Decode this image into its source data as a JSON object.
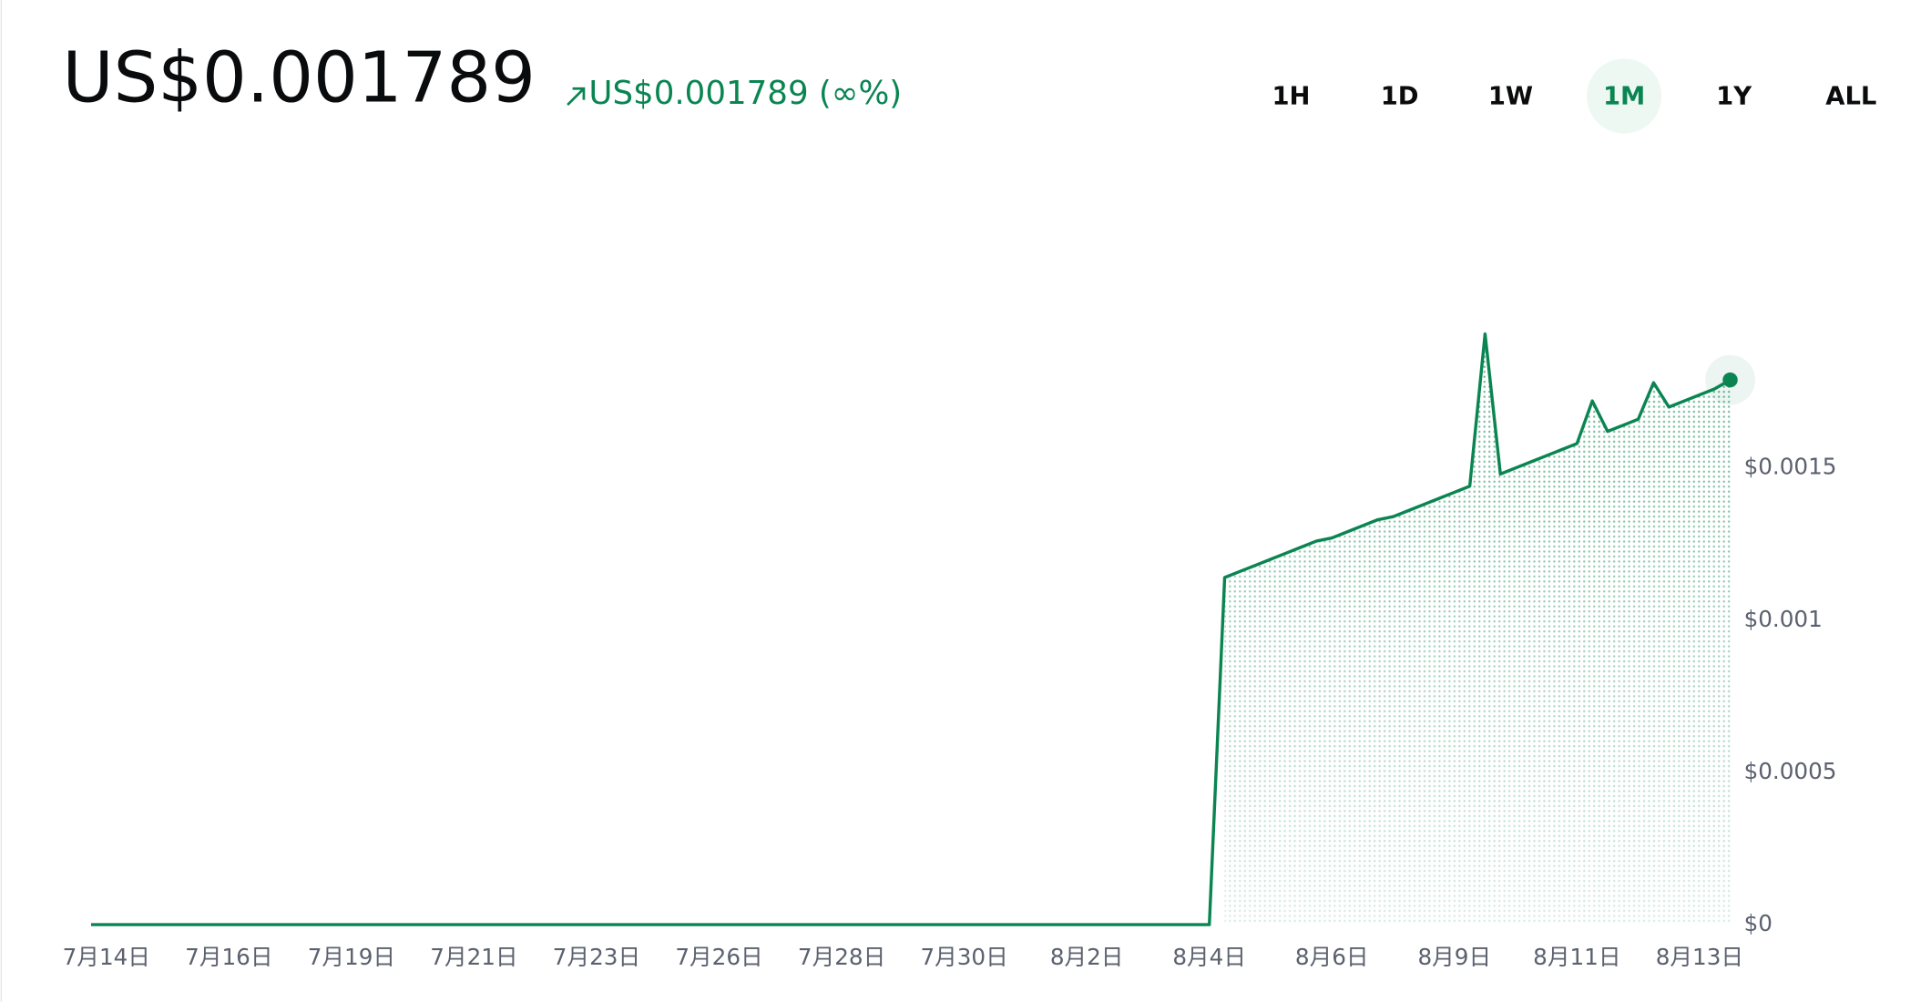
{
  "header": {
    "price": "US$0.001789",
    "change": "US$0.001789 (∞%)"
  },
  "periods": [
    "1H",
    "1D",
    "1W",
    "1M",
    "1Y",
    "ALL"
  ],
  "selected_period": "1M",
  "chart_data": {
    "type": "line",
    "color": "#0a8552",
    "categories": [
      null,
      "7月14日",
      null,
      null,
      null,
      null,
      null,
      null,
      null,
      "7月16日",
      null,
      null,
      null,
      null,
      null,
      null,
      null,
      "7月19日",
      null,
      null,
      null,
      null,
      null,
      null,
      null,
      "7月21日",
      null,
      null,
      null,
      null,
      null,
      null,
      null,
      "7月23日",
      null,
      null,
      null,
      null,
      null,
      null,
      null,
      "7月26日",
      null,
      null,
      null,
      null,
      null,
      null,
      null,
      "7月28日",
      null,
      null,
      null,
      null,
      null,
      null,
      null,
      "7月30日",
      null,
      null,
      null,
      null,
      null,
      null,
      null,
      "8月2日",
      null,
      null,
      null,
      null,
      null,
      null,
      null,
      "8月4日",
      null,
      null,
      null,
      null,
      null,
      null,
      null,
      "8月6日",
      null,
      null,
      null,
      null,
      null,
      null,
      null,
      "8月9日",
      null,
      null,
      null,
      null,
      null,
      null,
      null,
      "8月11日",
      null,
      null,
      null,
      null,
      null,
      null,
      null,
      "8月13日",
      null,
      null
    ],
    "values": [
      0,
      0,
      0,
      0,
      0,
      0,
      0,
      0,
      0,
      0,
      0,
      0,
      0,
      0,
      0,
      0,
      0,
      0,
      0,
      0,
      0,
      0,
      0,
      0,
      0,
      0,
      0,
      0,
      0,
      0,
      0,
      0,
      0,
      0,
      0,
      0,
      0,
      0,
      0,
      0,
      0,
      0,
      0,
      0,
      0,
      0,
      0,
      0,
      0,
      0,
      0,
      0,
      0,
      0,
      0,
      0,
      0,
      0,
      0,
      0,
      0,
      0,
      0,
      0,
      0,
      0,
      0,
      0,
      0,
      0,
      0,
      0,
      0,
      0,
      0.00114,
      0.00116,
      0.00118,
      0.0012,
      0.00122,
      0.00124,
      0.00126,
      0.00127,
      0.00129,
      0.00131,
      0.00133,
      0.00134,
      0.00136,
      0.00138,
      0.0014,
      0.00142,
      0.00144,
      0.00194,
      0.00148,
      0.0015,
      0.00152,
      0.00154,
      0.00156,
      0.00158,
      0.00172,
      0.00162,
      0.00164,
      0.00166,
      0.00178,
      0.0017,
      0.00172,
      0.00174,
      0.00176,
      0.001789
    ],
    "ylim": [
      0,
      0.002
    ],
    "yticks": [
      {
        "value": 0,
        "label": "$0"
      },
      {
        "value": 0.0005,
        "label": "$0.0005"
      },
      {
        "value": 0.001,
        "label": "$0.001"
      },
      {
        "value": 0.0015,
        "label": "$0.0015"
      }
    ]
  }
}
